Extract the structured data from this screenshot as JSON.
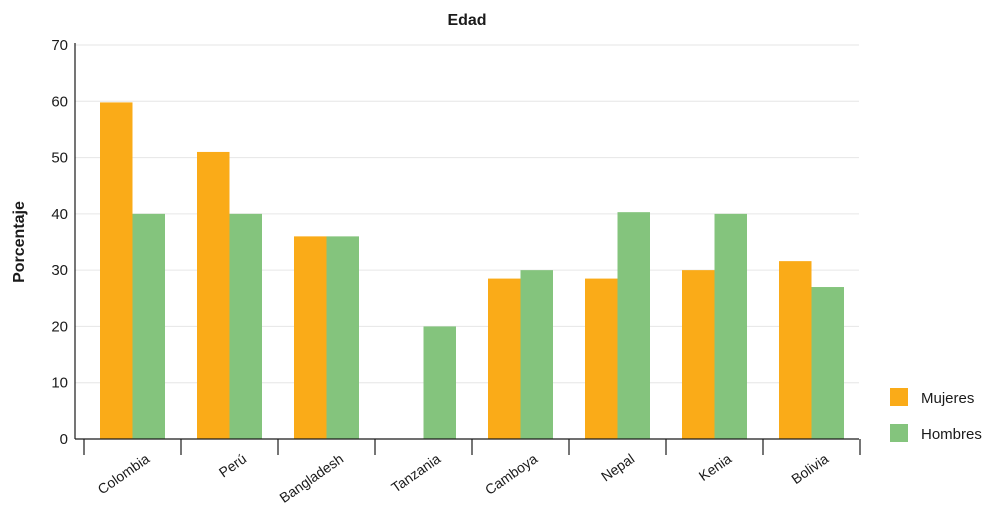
{
  "chart_data": {
    "type": "bar",
    "title": "Edad",
    "xlabel": "",
    "ylabel": "Porcentaje",
    "ylim": [
      0,
      70
    ],
    "yticks": [
      0,
      10,
      20,
      30,
      40,
      50,
      60,
      70
    ],
    "grid": true,
    "legend_position": "bottom-right",
    "categories": [
      "Colombia",
      "Perú",
      "Bangladesh",
      "Tanzania",
      "Camboya",
      "Nepal",
      "Kenia",
      "Bolivia"
    ],
    "series": [
      {
        "name": "Mujeres",
        "color": "#faab18",
        "values": [
          59.8,
          51,
          36,
          0,
          28.5,
          28.5,
          30,
          31.6
        ]
      },
      {
        "name": "Hombres",
        "color": "#84c47d",
        "values": [
          40,
          40,
          36,
          20,
          30,
          40.3,
          40,
          27
        ]
      }
    ]
  }
}
